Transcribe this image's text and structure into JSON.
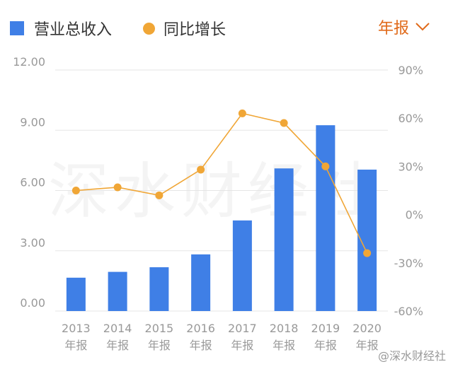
{
  "legend": {
    "bar_label": "营业总收入",
    "line_label": "同比增长"
  },
  "period_selector": {
    "label": "年报"
  },
  "watermark": "深水财经社",
  "footer_watermark": "@深水财经社",
  "colors": {
    "bar": "#3f7fe6",
    "line": "#f0a636",
    "accent": "#e06a1a",
    "grid": "#e5e5e5",
    "text": "#999999"
  },
  "chart_data": {
    "type": "bar",
    "categories": [
      "2013",
      "2014",
      "2015",
      "2016",
      "2017",
      "2018",
      "2019",
      "2020"
    ],
    "category_sublabel": "年报",
    "series": [
      {
        "name": "营业总收入",
        "type": "bar",
        "axis": "left",
        "values": [
          1.66,
          1.95,
          2.18,
          2.82,
          4.51,
          7.1,
          9.25,
          7.04
        ]
      },
      {
        "name": "同比增长",
        "type": "line",
        "axis": "right",
        "values": [
          15,
          17,
          12,
          28,
          63,
          57,
          30,
          -24
        ]
      }
    ],
    "y_left": {
      "ticks": [
        "0.00",
        "3.00",
        "6.00",
        "9.00",
        "12.00"
      ],
      "min": 0,
      "max": 12
    },
    "y_right": {
      "ticks": [
        "-60%",
        "-30%",
        "0%",
        "30%",
        "60%",
        "90%"
      ],
      "min": -60,
      "max": 90
    },
    "grid": true,
    "legend_position": "top-left"
  }
}
